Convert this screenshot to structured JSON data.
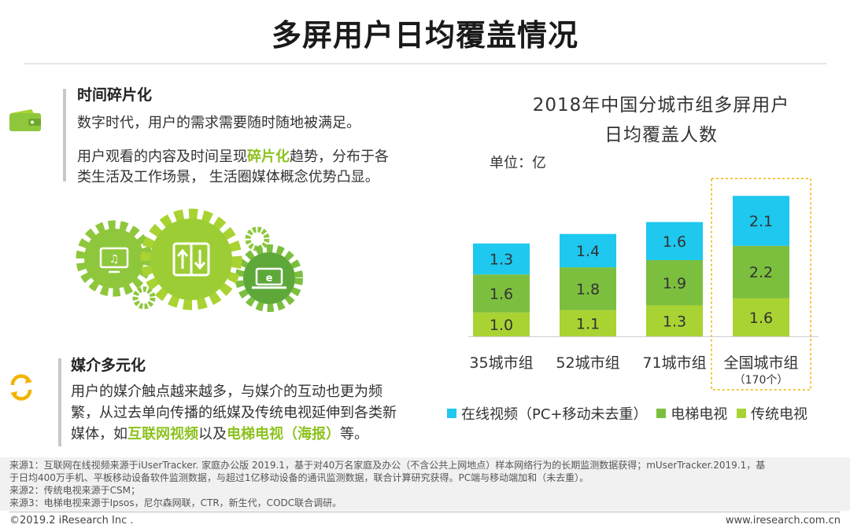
{
  "title": "多屏用户日均覆盖情况",
  "sections": [
    {
      "heading": "时间碎片化",
      "line1": "数字时代，用户的需求需要随时随地被满足。",
      "line2_pre": "用户观看的内容及时间呈现",
      "line2_hl": "碎片化",
      "line2_post": "趋势，分布于各",
      "line3": "类生活及工作场景， 生活圈媒体概念优势凸显。"
    },
    {
      "heading": "媒介多元化",
      "line1": "用户的媒介触点越来越多，与媒介的互动也更为频",
      "line2": "繁，从过去单向传播的纸媒及传统电视延伸到各类新",
      "line3_pre": "媒体，如",
      "line3_hl1": "互联网视频",
      "line3_mid": "以及",
      "line3_hl2": "电梯电视（海报）",
      "line3_post": "等。"
    }
  ],
  "icons": [
    "wallet-icon",
    "refresh-icon",
    "music-screen-icon",
    "upload-download-icon",
    "browser-laptop-icon"
  ],
  "colors": {
    "online_video": "#1ec8ef",
    "elevator_tv": "#7cbf3e",
    "traditional_tv": "#a9d332",
    "highlight": "#8dc21f",
    "gear": "#8ec73c",
    "highlight_box": "#f2b400"
  },
  "chart_data": {
    "type": "bar",
    "stacked": true,
    "title_line1": "2018年中国分城市组多屏用户",
    "title_line2": "日均覆盖人数",
    "unit": "单位：亿",
    "categories": [
      "35城市组",
      "52城市组",
      "71城市组",
      "全国城市组"
    ],
    "category_sublabels": [
      "",
      "",
      "",
      "（170个）"
    ],
    "highlighted_category": "全国城市组",
    "series": [
      {
        "name": "传统电视",
        "values": [
          1.0,
          1.1,
          1.3,
          1.6
        ]
      },
      {
        "name": "电梯电视",
        "values": [
          1.6,
          1.8,
          1.9,
          2.2
        ]
      },
      {
        "name": "在线视频（PC+移动未去重）",
        "values": [
          1.3,
          1.4,
          1.6,
          2.1
        ]
      }
    ],
    "legend": [
      "在线视频（PC+移动未去重）",
      "电梯电视",
      "传统电视"
    ],
    "legend_position": "bottom",
    "grid": false
  },
  "sources": [
    "来源1：互联网在线视频来源于iUserTracker. 家庭办公版 2019.1，基于对40万名家庭及办公（不含公共上网地点）样本网络行为的长期监测数据获得；mUserTracker.2019.1，基",
    "于日均400万手机、平板移动设备软件监测数据，与超过1亿移动设备的通讯监测数据，联合计算研究获得。PC端与移动端加和（未去重）。",
    "来源2：传统电视来源于CSM；",
    "来源3：电梯电视来源于Ipsos，尼尔森网联，CTR，新生代，CODC联合调研。"
  ],
  "footer": {
    "copyright": "©2019.2 iResearch Inc .",
    "url": "www.iresearch.com.cn"
  }
}
